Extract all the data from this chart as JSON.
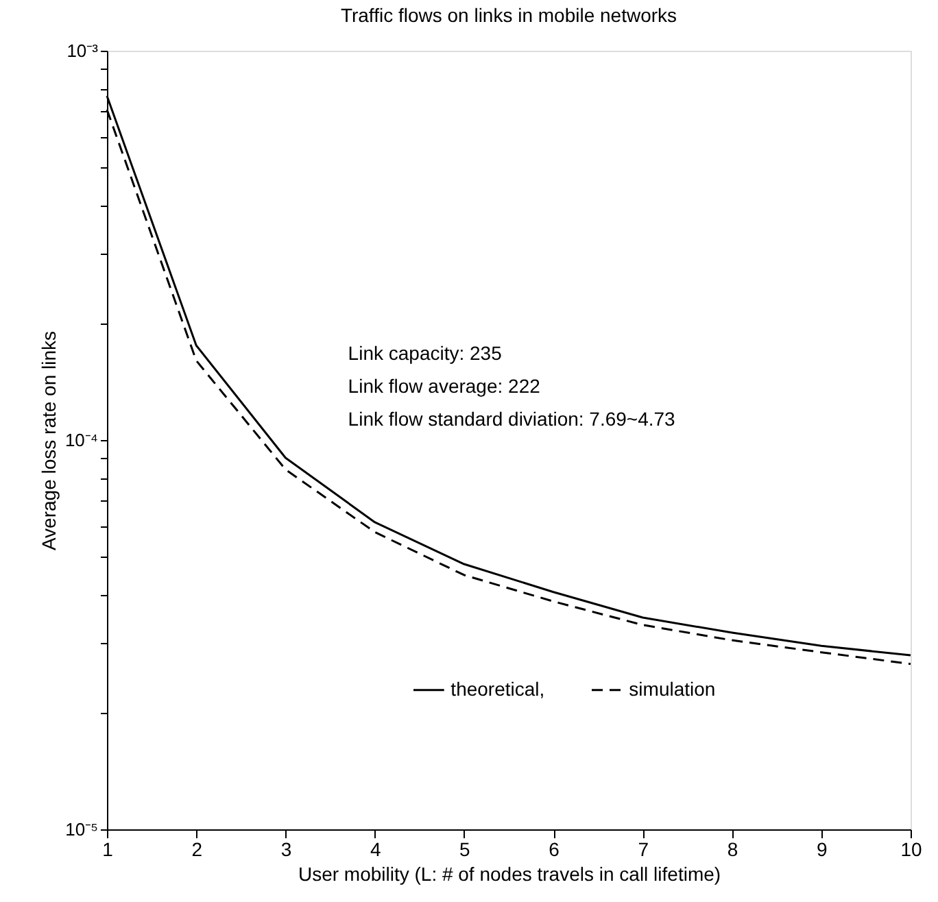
{
  "chart_data": {
    "type": "line",
    "title": "Traffic flows on links in mobile networks",
    "xlabel": "User mobility (L: # of nodes travels in call lifetime)",
    "ylabel": "Average loss rate on links",
    "x": [
      1,
      2,
      3,
      4,
      5,
      6,
      7,
      8,
      9,
      10
    ],
    "series": [
      {
        "name": "theoretical,",
        "color": "#000000",
        "line_style": "solid",
        "values": [
          0.000765,
          0.000175,
          9e-05,
          6.15e-05,
          4.8e-05,
          4.07e-05,
          3.5e-05,
          3.2e-05,
          2.96e-05,
          2.8e-05
        ]
      },
      {
        "name": "simulation",
        "color": "#000000",
        "line_style": "dashed",
        "values": [
          0.000706,
          0.00016,
          8.4e-05,
          5.8e-05,
          4.5e-05,
          3.85e-05,
          3.35e-05,
          3.06e-05,
          2.85e-05,
          2.66e-05
        ]
      }
    ],
    "log": "y",
    "xlim": [
      1,
      10
    ],
    "xticks": [
      1,
      2,
      3,
      4,
      5,
      6,
      7,
      8,
      9,
      10
    ],
    "ylim": [
      1e-05,
      0.001
    ],
    "yticks": [
      {
        "value": 1e-05,
        "label": "10⁻⁵"
      },
      {
        "value": 2e-05,
        "label": null
      },
      {
        "value": 3e-05,
        "label": null
      },
      {
        "value": 4e-05,
        "label": null
      },
      {
        "value": 5e-05,
        "label": null
      },
      {
        "value": 6e-05,
        "label": null
      },
      {
        "value": 7e-05,
        "label": null
      },
      {
        "value": 8e-05,
        "label": null
      },
      {
        "value": 9e-05,
        "label": null
      },
      {
        "value": 0.0001,
        "label": "10⁻⁴"
      },
      {
        "value": 0.0002,
        "label": null
      },
      {
        "value": 0.0003,
        "label": null
      },
      {
        "value": 0.0004,
        "label": null
      },
      {
        "value": 0.0005,
        "label": null
      },
      {
        "value": 0.0006,
        "label": null
      },
      {
        "value": 0.0007,
        "label": null
      },
      {
        "value": 0.0008,
        "label": null
      },
      {
        "value": 0.0009,
        "label": null
      },
      {
        "value": 0.001,
        "label": "10⁻³"
      }
    ],
    "annotations": [
      "Link capacity: 235",
      "Link flow average: 222",
      "Link flow standard diviation: 7.69~4.73"
    ],
    "legend": "bottom",
    "grid": false,
    "marker": "none"
  }
}
